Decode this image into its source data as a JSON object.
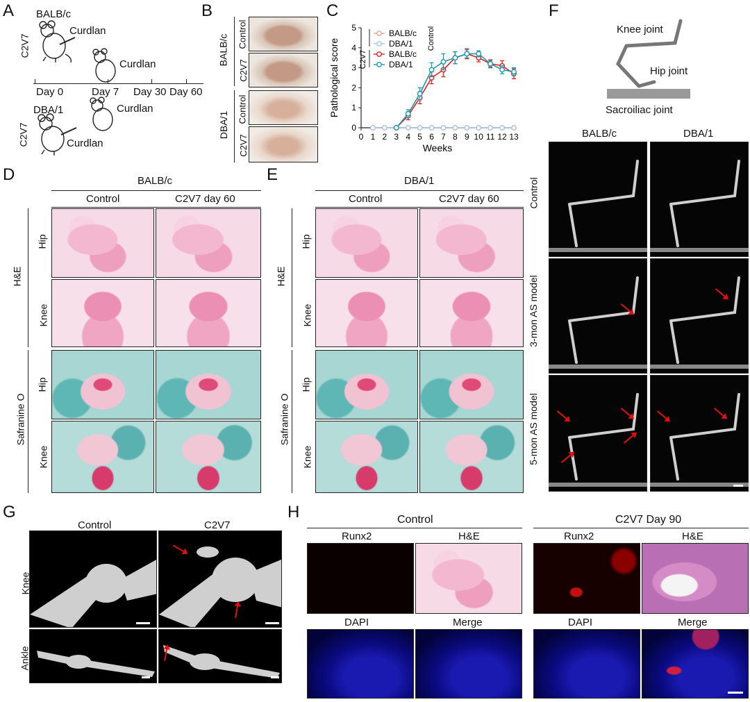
{
  "panels": {
    "A": "A",
    "B": "B",
    "C": "C",
    "D": "D",
    "E": "E",
    "F": "F",
    "G": "G",
    "H": "H"
  },
  "panel_a": {
    "strain1": "BALB/c",
    "strain2": "DBA/1",
    "agent1": "C2V7",
    "agent2": "C2V7",
    "curdlan": "Curdlan",
    "timeline": [
      "Day 0",
      "Day 7",
      "Day 30",
      "Day 60"
    ]
  },
  "panel_b": {
    "strain1": "BALB/c",
    "strain2": "DBA/1",
    "rows": [
      "Control",
      "C2V7",
      "Control",
      "C2V7"
    ]
  },
  "panel_d": {
    "title": "BALB/c",
    "cols": [
      "Control",
      "C2V7 day 60"
    ],
    "rows": [
      "Hip",
      "Knee",
      "Hip",
      "Knee"
    ],
    "groups": [
      "H&E",
      "Safranine O"
    ]
  },
  "panel_e": {
    "title": "DBA/1",
    "cols": [
      "Control",
      "C2V7 day 60"
    ],
    "rows": [
      "Hip",
      "Knee",
      "Hip",
      "Knee"
    ],
    "groups": [
      "H&E",
      "Safranine O"
    ]
  },
  "panel_f": {
    "labels": [
      "Knee joint",
      "Hip joint",
      "Sacroiliac joint"
    ],
    "cols": [
      "BALB/c",
      "DBA/1"
    ],
    "rows": [
      "Control",
      "3-mon AS model",
      "5-mon AS model"
    ]
  },
  "panel_g": {
    "cols": [
      "Control",
      "C2V7"
    ],
    "rows": [
      "Knee",
      "Ankle"
    ]
  },
  "panel_h": {
    "group1": "Control",
    "group2": "C2V7 Day 90",
    "top": [
      "Runx2",
      "H&E",
      "Runx2",
      "H&E"
    ],
    "bottom": [
      "DAPI",
      "Merge",
      "DAPI",
      "Merge"
    ]
  },
  "chart_data": {
    "type": "line",
    "ylabel": "Pathological score",
    "xlabel": "Weeks",
    "xlim": [
      0,
      13
    ],
    "ylim": [
      0,
      5
    ],
    "xticks": [
      0,
      1,
      2,
      3,
      4,
      5,
      6,
      7,
      8,
      9,
      10,
      11,
      12,
      13
    ],
    "yticks": [
      0,
      1,
      2,
      3,
      4,
      5
    ],
    "legend": {
      "group_control": "Control",
      "group_c2v7": "C2V7",
      "entries": [
        "BALB/c",
        "DBA/1",
        "BALB/c",
        "DBA/1"
      ]
    },
    "series": [
      {
        "name": "BALB/c",
        "group": "Control",
        "color": "#f0a0a0",
        "x": [
          1,
          2,
          3,
          4,
          5,
          6,
          7,
          8,
          9,
          10,
          11,
          12,
          13
        ],
        "y": [
          0,
          0,
          0,
          0,
          0,
          0,
          0,
          0,
          0,
          0,
          0,
          0,
          0
        ]
      },
      {
        "name": "DBA/1",
        "group": "Control",
        "color": "#a8c4e8",
        "x": [
          1,
          2,
          3,
          4,
          5,
          6,
          7,
          8,
          9,
          10,
          11,
          12,
          13
        ],
        "y": [
          0,
          0,
          0,
          0,
          0,
          0,
          0,
          0,
          0,
          0,
          0,
          0,
          0
        ]
      },
      {
        "name": "BALB/c",
        "group": "C2V7",
        "color": "#e02020",
        "x": [
          3,
          4,
          5,
          6,
          7,
          8,
          9,
          10,
          11,
          12,
          13
        ],
        "y": [
          0,
          0.6,
          1.5,
          2.5,
          2.9,
          3.5,
          3.7,
          3.5,
          3.2,
          3.1,
          2.7
        ],
        "err": [
          0,
          0.2,
          0.3,
          0.3,
          0.35,
          0.3,
          0.25,
          0.2,
          0.2,
          0.25,
          0.25
        ]
      },
      {
        "name": "DBA/1",
        "group": "C2V7",
        "color": "#1a9ab0",
        "x": [
          3,
          4,
          5,
          6,
          7,
          8,
          9,
          10,
          11,
          12,
          13
        ],
        "y": [
          0,
          0.7,
          1.7,
          2.9,
          3.3,
          3.5,
          3.7,
          3.7,
          3.2,
          2.9,
          2.8
        ],
        "err": [
          0,
          0.2,
          0.3,
          0.35,
          0.4,
          0.3,
          0.2,
          0.15,
          0.15,
          0.2,
          0.2
        ]
      }
    ]
  }
}
